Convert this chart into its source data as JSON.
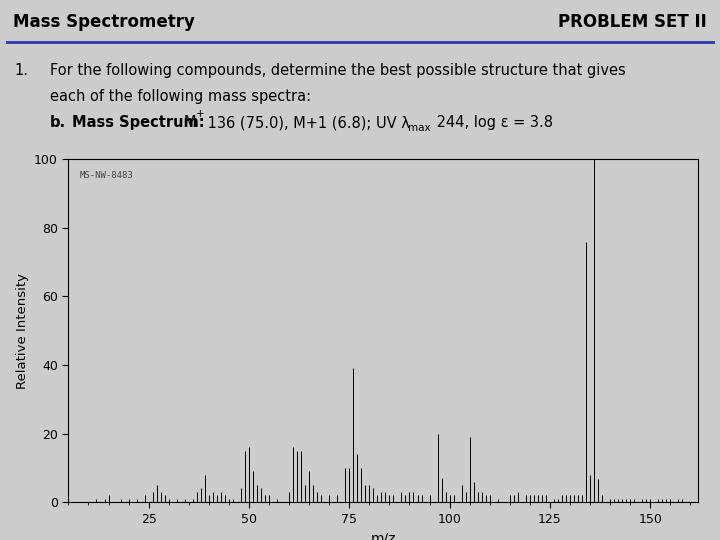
{
  "title_left": "Mass Spectrometry",
  "title_right": "PROBLEM SET II",
  "problem_number": "1.",
  "sub_label": "b.",
  "spectrum_label": "MS-NW-8483",
  "bg_color": "#cccccc",
  "plot_bg_color": "#cccccc",
  "line_color": "#000000",
  "header_line_color": "#3333aa",
  "ylabel": "Relative Intensity",
  "xlabel": "m/z",
  "xlim": [
    5,
    162
  ],
  "ylim": [
    0,
    100
  ],
  "yticks": [
    0,
    20,
    40,
    60,
    80,
    100
  ],
  "xticks": [
    25,
    50,
    75,
    100,
    125,
    150
  ],
  "peaks": [
    [
      12,
      1
    ],
    [
      14,
      1
    ],
    [
      15,
      2
    ],
    [
      18,
      1
    ],
    [
      20,
      1
    ],
    [
      22,
      1
    ],
    [
      24,
      2
    ],
    [
      26,
      3
    ],
    [
      27,
      5
    ],
    [
      28,
      3
    ],
    [
      29,
      2
    ],
    [
      30,
      1
    ],
    [
      32,
      1
    ],
    [
      34,
      1
    ],
    [
      36,
      1
    ],
    [
      37,
      3
    ],
    [
      38,
      4
    ],
    [
      39,
      8
    ],
    [
      40,
      2
    ],
    [
      41,
      3
    ],
    [
      42,
      2
    ],
    [
      43,
      3
    ],
    [
      44,
      2
    ],
    [
      45,
      1
    ],
    [
      46,
      1
    ],
    [
      48,
      4
    ],
    [
      49,
      15
    ],
    [
      50,
      16
    ],
    [
      51,
      9
    ],
    [
      52,
      5
    ],
    [
      53,
      4
    ],
    [
      54,
      2
    ],
    [
      55,
      2
    ],
    [
      57,
      1
    ],
    [
      60,
      3
    ],
    [
      61,
      16
    ],
    [
      62,
      15
    ],
    [
      63,
      15
    ],
    [
      64,
      5
    ],
    [
      65,
      9
    ],
    [
      66,
      5
    ],
    [
      67,
      3
    ],
    [
      68,
      2
    ],
    [
      70,
      2
    ],
    [
      72,
      2
    ],
    [
      74,
      10
    ],
    [
      75,
      10
    ],
    [
      76,
      39
    ],
    [
      77,
      14
    ],
    [
      78,
      10
    ],
    [
      79,
      5
    ],
    [
      80,
      5
    ],
    [
      81,
      4
    ],
    [
      82,
      2
    ],
    [
      83,
      3
    ],
    [
      84,
      3
    ],
    [
      85,
      2
    ],
    [
      86,
      2
    ],
    [
      88,
      3
    ],
    [
      89,
      2
    ],
    [
      90,
      3
    ],
    [
      91,
      3
    ],
    [
      92,
      2
    ],
    [
      93,
      2
    ],
    [
      95,
      2
    ],
    [
      97,
      20
    ],
    [
      98,
      7
    ],
    [
      99,
      3
    ],
    [
      100,
      2
    ],
    [
      101,
      2
    ],
    [
      103,
      5
    ],
    [
      104,
      3
    ],
    [
      105,
      19
    ],
    [
      106,
      6
    ],
    [
      107,
      3
    ],
    [
      108,
      3
    ],
    [
      109,
      2
    ],
    [
      110,
      2
    ],
    [
      112,
      1
    ],
    [
      115,
      2
    ],
    [
      116,
      2
    ],
    [
      117,
      3
    ],
    [
      119,
      2
    ],
    [
      120,
      2
    ],
    [
      121,
      2
    ],
    [
      122,
      2
    ],
    [
      123,
      2
    ],
    [
      124,
      2
    ],
    [
      126,
      1
    ],
    [
      127,
      1
    ],
    [
      128,
      2
    ],
    [
      129,
      2
    ],
    [
      130,
      2
    ],
    [
      131,
      2
    ],
    [
      132,
      2
    ],
    [
      133,
      2
    ],
    [
      134,
      76
    ],
    [
      135,
      8
    ],
    [
      136,
      100
    ],
    [
      137,
      6.8
    ],
    [
      138,
      2
    ],
    [
      140,
      1
    ],
    [
      141,
      1
    ],
    [
      142,
      1
    ],
    [
      143,
      1
    ],
    [
      144,
      1
    ],
    [
      145,
      1
    ],
    [
      146,
      1
    ],
    [
      148,
      1
    ],
    [
      149,
      1
    ],
    [
      150,
      1
    ],
    [
      152,
      1
    ],
    [
      153,
      1
    ],
    [
      154,
      1
    ],
    [
      155,
      1
    ],
    [
      157,
      1
    ],
    [
      158,
      1
    ]
  ]
}
